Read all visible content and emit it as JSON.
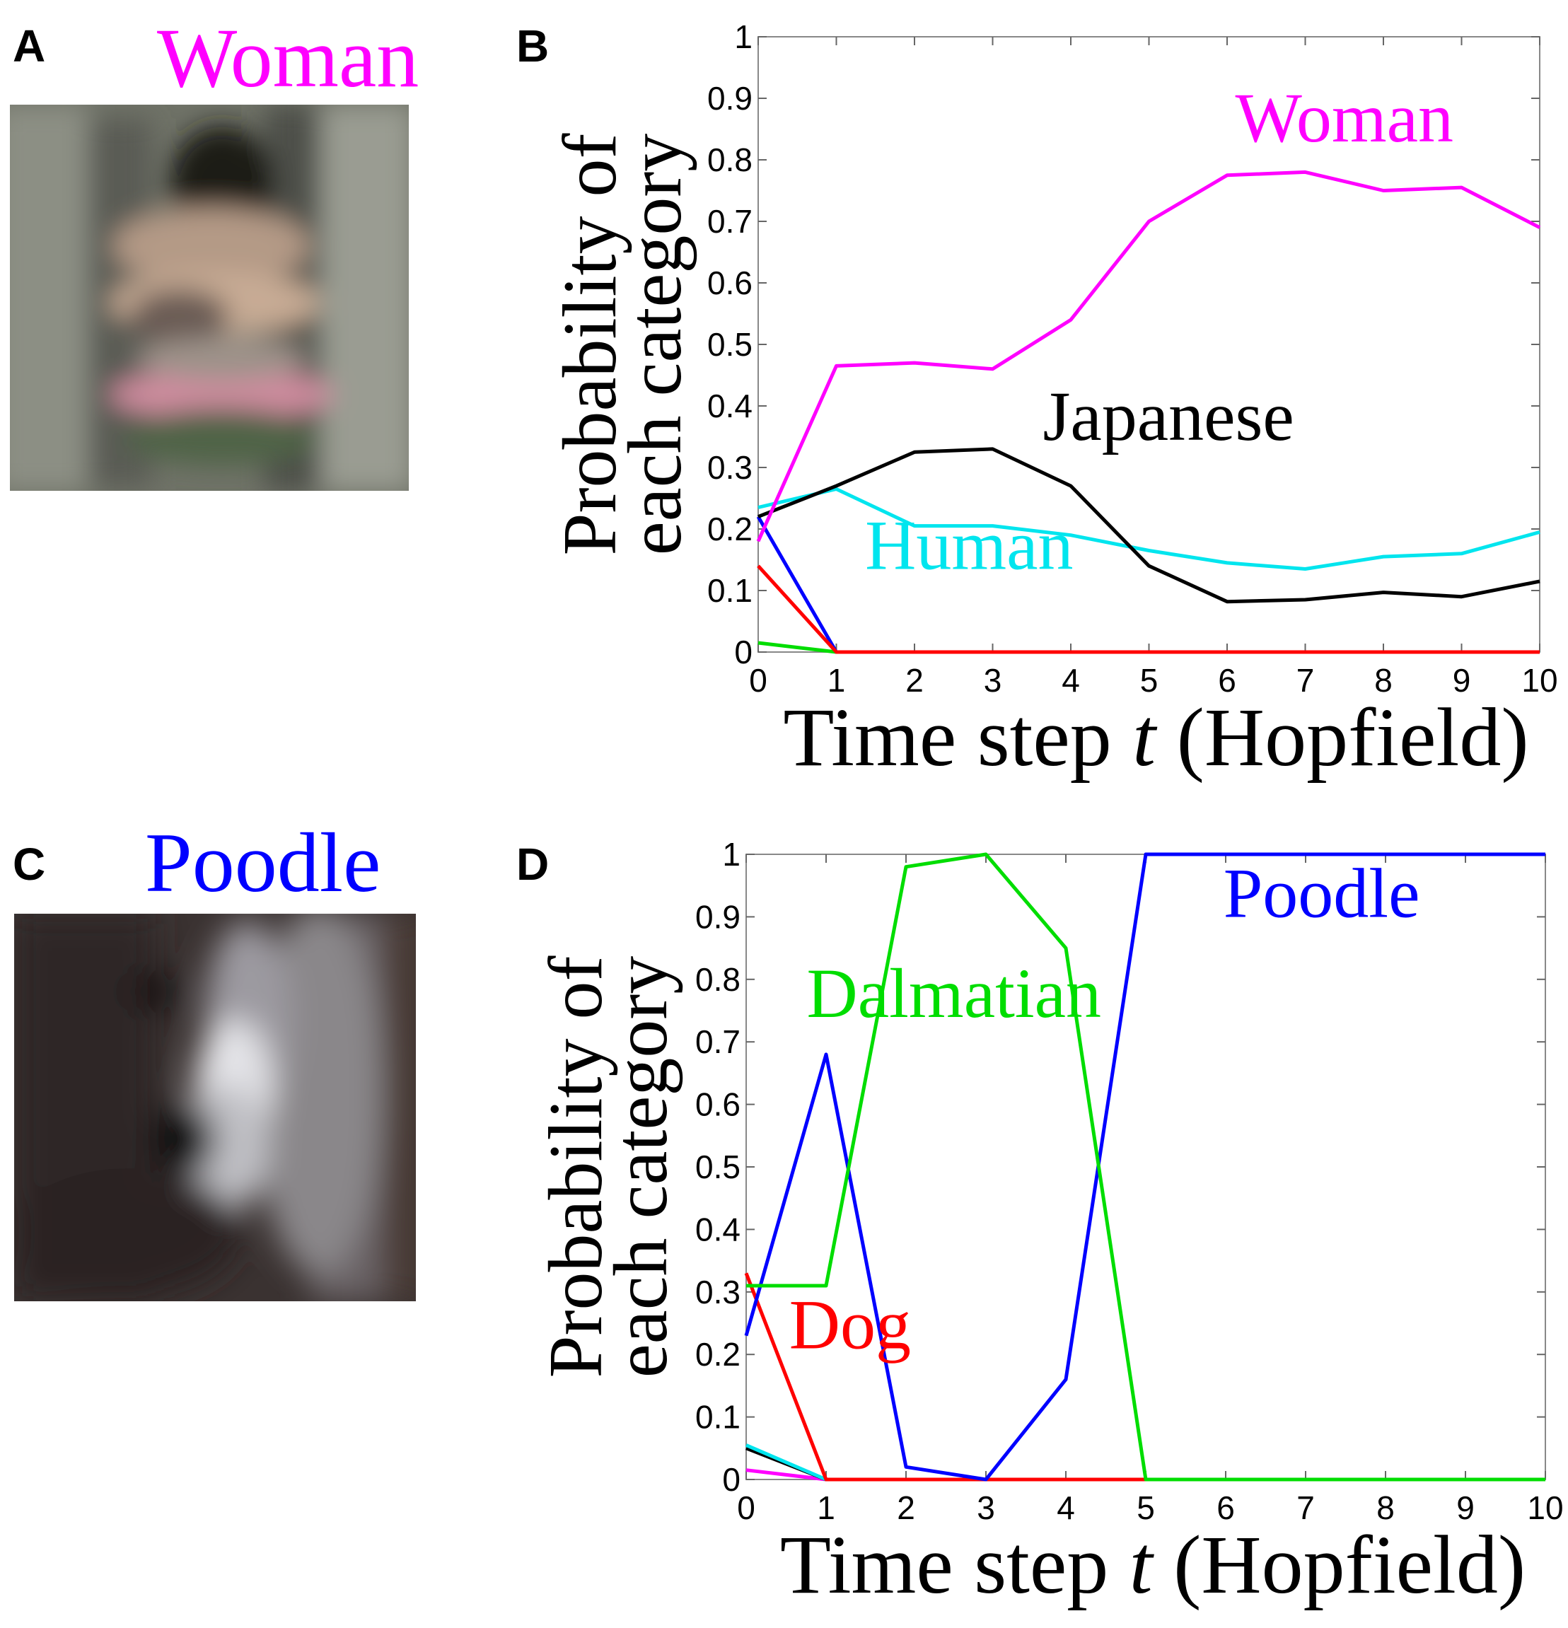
{
  "panels": [
    {
      "letter": "A",
      "image_title": "Woman",
      "image_title_color": "#ff00ff"
    },
    {
      "letter": "B"
    },
    {
      "letter": "C",
      "image_title": "Poodle",
      "image_title_color": "#0000ff"
    },
    {
      "letter": "D"
    }
  ],
  "chart_data": [
    {
      "type": "line",
      "xlabel_prefix": "Time step ",
      "xlabel_var": "t",
      "xlabel_suffix": " (Hopfield)",
      "ylabel_line1": "Probability of",
      "ylabel_line2": "each category",
      "xlim": [
        0,
        10
      ],
      "ylim": [
        0,
        1
      ],
      "x_ticks": [
        0,
        1,
        2,
        3,
        4,
        5,
        6,
        7,
        8,
        9,
        10
      ],
      "y_ticks": [
        0,
        0.1,
        0.2,
        0.3,
        0.4,
        0.5,
        0.6,
        0.7,
        0.8,
        0.9,
        1
      ],
      "y_tick_labels": [
        "0",
        "0.1",
        "0.2",
        "0.3",
        "0.4",
        "0.5",
        "0.6",
        "0.7",
        "0.8",
        "0.9",
        "1"
      ],
      "grid": false,
      "x": [
        0,
        1,
        2,
        3,
        4,
        5,
        6,
        7,
        8,
        9,
        10
      ],
      "series": [
        {
          "name": "Woman",
          "color": "#ff00ff",
          "values": [
            0.18,
            0.465,
            0.47,
            0.46,
            0.54,
            0.7,
            0.775,
            0.78,
            0.75,
            0.755,
            0.69
          ]
        },
        {
          "name": "Japanese",
          "color": "#000000",
          "values": [
            0.22,
            0.27,
            0.325,
            0.33,
            0.27,
            0.14,
            0.082,
            0.085,
            0.097,
            0.09,
            0.115
          ]
        },
        {
          "name": "Human",
          "color": "#00e5ee",
          "values": [
            0.235,
            0.265,
            0.205,
            0.205,
            0.19,
            0.165,
            0.145,
            0.135,
            0.155,
            0.16,
            0.195
          ]
        },
        {
          "color": "#ff0000",
          "values": [
            0.14,
            0.0,
            0.0,
            0.0,
            0.0,
            0.0,
            0.0,
            0.0,
            0.0,
            0.0,
            0.0
          ]
        },
        {
          "color": "#00dd00",
          "values": [
            0.015,
            0.0,
            0.0,
            0.0,
            0.0,
            0.0,
            0.0,
            0.0,
            0.0,
            0.0,
            0.0
          ]
        },
        {
          "color": "#0000ff",
          "values": [
            0.22,
            0.0,
            0.0,
            0.0,
            0.0,
            0.0,
            0.0,
            0.0,
            0.0,
            0.0,
            0.0
          ]
        }
      ],
      "annotations": [
        {
          "text": "Woman",
          "color": "#ff00ff",
          "x": 7.5,
          "y": 0.83
        },
        {
          "text": "Japanese",
          "color": "#000000",
          "x": 5.25,
          "y": 0.345
        },
        {
          "text": "Human",
          "color": "#00e5ee",
          "x": 2.7,
          "y": 0.135
        }
      ]
    },
    {
      "type": "line",
      "xlabel_prefix": "Time step ",
      "xlabel_var": "t",
      "xlabel_suffix": " (Hopfield)",
      "ylabel_line1": "Probability of",
      "ylabel_line2": "each category",
      "xlim": [
        0,
        10
      ],
      "ylim": [
        0,
        1
      ],
      "x_ticks": [
        0,
        1,
        2,
        3,
        4,
        5,
        6,
        7,
        8,
        9,
        10
      ],
      "y_ticks": [
        0,
        0.1,
        0.2,
        0.3,
        0.4,
        0.5,
        0.6,
        0.7,
        0.8,
        0.9,
        1
      ],
      "y_tick_labels": [
        "0",
        "0.1",
        "0.2",
        "0.3",
        "0.4",
        "0.5",
        "0.6",
        "0.7",
        "0.8",
        "0.9",
        "1"
      ],
      "grid": false,
      "x": [
        0,
        1,
        2,
        3,
        4,
        5,
        6,
        7,
        8,
        9,
        10
      ],
      "series": [
        {
          "name": "Dalmatian",
          "color": "#00dd00",
          "values": [
            0.31,
            0.31,
            0.98,
            1.0,
            0.85,
            0.0,
            0.0,
            0.0,
            0.0,
            0.0,
            0.0
          ]
        },
        {
          "name": "Poodle",
          "color": "#0000ff",
          "values": [
            0.23,
            0.68,
            0.02,
            0.0,
            0.16,
            1.0,
            1.0,
            1.0,
            1.0,
            1.0,
            1.0
          ]
        },
        {
          "name": "Dog",
          "color": "#ff0000",
          "values": [
            0.33,
            0.0,
            0.0,
            0.0,
            0.0,
            0.0,
            0.0,
            0.0,
            0.0,
            0.0,
            0.0
          ]
        },
        {
          "color": "#00e5ee",
          "values": [
            0.055,
            0.0,
            0.0,
            0.0,
            0.0,
            0.0,
            0.0,
            0.0,
            0.0,
            0.0,
            0.0
          ]
        },
        {
          "color": "#000000",
          "values": [
            0.05,
            0.0,
            0.0,
            0.0,
            0.0,
            0.0,
            0.0,
            0.0,
            0.0,
            0.0,
            0.0
          ]
        },
        {
          "color": "#ff00ff",
          "values": [
            0.015,
            0.0,
            0.0,
            0.0,
            0.0,
            0.0,
            0.0,
            0.0,
            0.0,
            0.0,
            0.0
          ]
        }
      ],
      "annotations": [
        {
          "text": "Dalmatian",
          "color": "#00dd00",
          "x": 2.6,
          "y": 0.74
        },
        {
          "text": "Poodle",
          "color": "#0000ff",
          "x": 7.2,
          "y": 0.9
        },
        {
          "text": "Dog",
          "color": "#ff0000",
          "x": 1.3,
          "y": 0.21
        }
      ]
    }
  ]
}
